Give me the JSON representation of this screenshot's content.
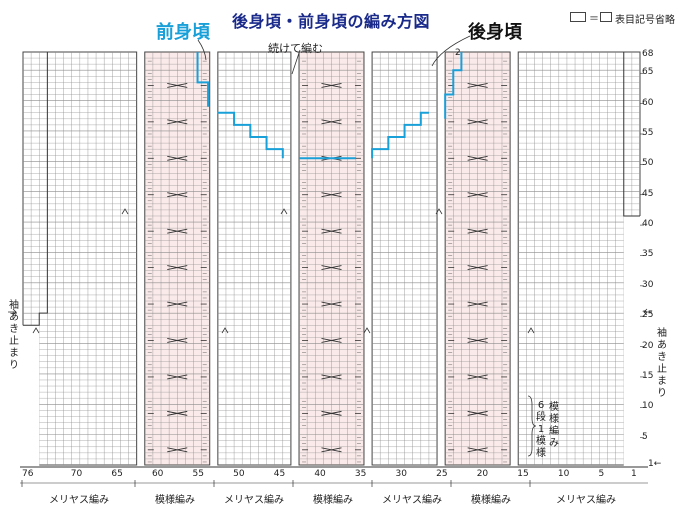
{
  "title": "後身頃・前身頃の編み方図",
  "labels": {
    "front": "前身頃",
    "back": "後身頃",
    "continue_knit": "続けて編む",
    "legend_symbol": "＝",
    "legend_text": "表目記号省略",
    "sleeve_left": "袖あき止まり",
    "sleeve_right": "袖あき止まり",
    "pattern_repeat_a": "模様編み",
    "pattern_repeat_b": "6段1模様",
    "top_stitch": "2",
    "end_marker": "1←"
  },
  "row_numbers": [
    "68",
    "65",
    "60",
    "55",
    "50",
    "45",
    "40",
    "35",
    "30",
    "25",
    "20",
    "15",
    "10",
    "5"
  ],
  "column_numbers": [
    "76",
    "70",
    "65",
    "60",
    "55",
    "50",
    "45",
    "40",
    "35",
    "30",
    "25",
    "20",
    "15",
    "10",
    "5",
    "1"
  ],
  "section_labels": [
    "メリヤス編み",
    "模様編み",
    "メリヤス編み",
    "模様編み",
    "メリヤス編み",
    "模様編み",
    "メリヤス編み"
  ],
  "colors": {
    "title": "#1a2a8a",
    "front_line": "#1aa0d8",
    "pattern_fill": "#fbeaea",
    "grid": "#8c8c8c"
  }
}
